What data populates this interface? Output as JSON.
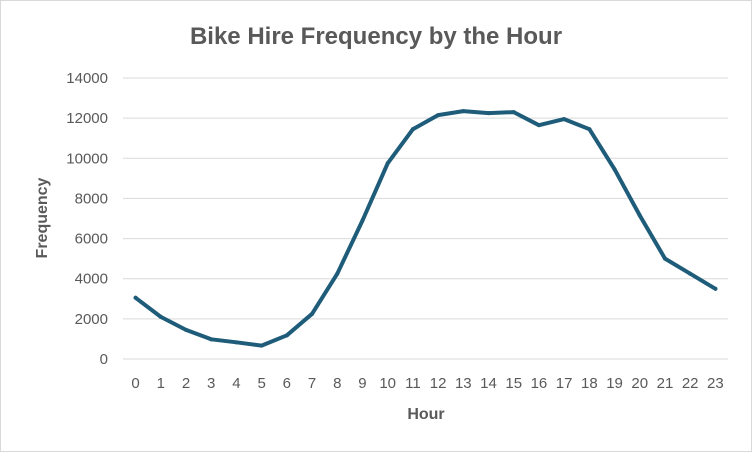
{
  "chart_data": {
    "type": "line",
    "title": "Bike Hire Frequency by the Hour",
    "xlabel": "Hour",
    "ylabel": "Frequency",
    "categories": [
      "0",
      "1",
      "2",
      "3",
      "4",
      "5",
      "6",
      "7",
      "8",
      "9",
      "10",
      "11",
      "12",
      "13",
      "14",
      "15",
      "16",
      "17",
      "18",
      "19",
      "20",
      "21",
      "22",
      "23"
    ],
    "series": [
      {
        "values": [
          3050,
          2100,
          1450,
          980,
          830,
          670,
          1180,
          2250,
          4250,
          6900,
          9750,
          11450,
          12150,
          12350,
          12250,
          12300,
          11650,
          11950,
          11450,
          9450,
          7150,
          5000,
          4250,
          3500
        ],
        "color": "#1f5c7a"
      }
    ],
    "ylim": [
      0,
      14000
    ],
    "yticks": [
      "0",
      "2000",
      "4000",
      "6000",
      "8000",
      "10000",
      "12000",
      "14000"
    ],
    "grid": true,
    "legend": "none"
  }
}
